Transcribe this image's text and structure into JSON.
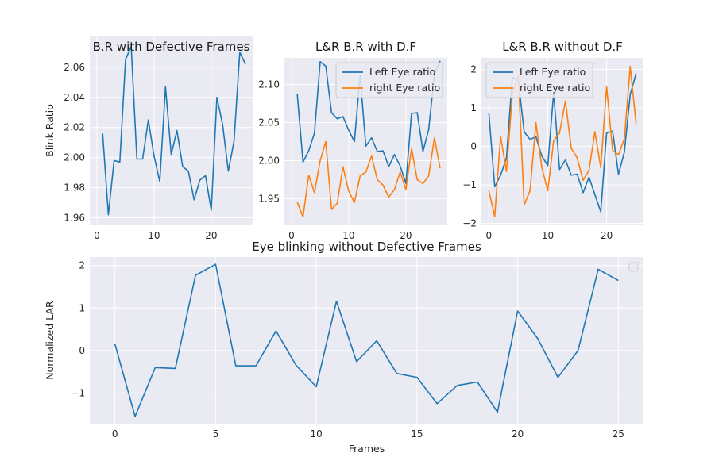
{
  "chart_data": [
    {
      "type": "line",
      "title": "B.R with Defective Frames",
      "xlabel": "",
      "ylabel": "Blink Ratio",
      "xlim": [
        -1.25,
        27.25
      ],
      "ylim": [
        1.955,
        2.081
      ],
      "xticks": [
        0,
        10,
        20
      ],
      "yticks": [
        1.96,
        1.98,
        2.0,
        2.02,
        2.04,
        2.06
      ],
      "ytick_labels": [
        "1.96",
        "1.98",
        "2.00",
        "2.02",
        "2.04",
        "2.06"
      ],
      "series": [
        {
          "color": "#1f77b4",
          "x": [
            1,
            2,
            3,
            4,
            5,
            6,
            7,
            8,
            9,
            10,
            11,
            12,
            13,
            14,
            15,
            16,
            17,
            18,
            19,
            20,
            21,
            22,
            23,
            24,
            25,
            26
          ],
          "y": [
            2.016,
            1.962,
            1.998,
            1.997,
            2.065,
            2.074,
            1.999,
            1.999,
            2.025,
            2.001,
            1.984,
            2.047,
            2.002,
            2.018,
            1.994,
            1.991,
            1.972,
            1.985,
            1.988,
            1.965,
            2.04,
            2.022,
            1.991,
            2.011,
            2.07,
            2.062
          ]
        }
      ]
    },
    {
      "type": "line",
      "title": "L&R B.R with D.F",
      "xlabel": "",
      "ylabel": "",
      "xlim": [
        -1.25,
        27.25
      ],
      "ylim": [
        1.915,
        2.135
      ],
      "xticks": [
        0,
        10,
        20
      ],
      "yticks": [
        1.95,
        2.0,
        2.05,
        2.1
      ],
      "ytick_labels": [
        "1.95",
        "2.00",
        "2.05",
        "2.10"
      ],
      "legend": "upper right",
      "series": [
        {
          "name": "Left Eye ratio",
          "color": "#1f77b4",
          "x": [
            1,
            2,
            3,
            4,
            5,
            6,
            7,
            8,
            9,
            10,
            11,
            12,
            13,
            14,
            15,
            16,
            17,
            18,
            19,
            20,
            21,
            22,
            23,
            24,
            25,
            26
          ],
          "y": [
            2.087,
            1.998,
            2.013,
            2.036,
            2.13,
            2.124,
            2.063,
            2.055,
            2.058,
            2.04,
            2.025,
            2.112,
            2.019,
            2.03,
            2.012,
            2.013,
            1.992,
            2.008,
            1.993,
            1.97,
            2.062,
            2.063,
            2.012,
            2.041,
            2.113,
            2.131
          ]
        },
        {
          "name": "right Eye ratio",
          "color": "#ff7f0e",
          "x": [
            1,
            2,
            3,
            4,
            5,
            6,
            7,
            8,
            9,
            10,
            11,
            12,
            13,
            14,
            15,
            16,
            17,
            18,
            19,
            20,
            21,
            22,
            23,
            24,
            25,
            26
          ],
          "y": [
            1.945,
            1.926,
            1.981,
            1.958,
            2.0,
            2.025,
            1.936,
            1.944,
            1.992,
            1.96,
            1.945,
            1.98,
            1.985,
            2.006,
            1.975,
            1.968,
            1.952,
            1.962,
            1.985,
            1.962,
            2.016,
            1.975,
            1.97,
            1.98,
            2.03,
            1.99
          ]
        }
      ]
    },
    {
      "type": "line",
      "title": "L&R B.R without D.F",
      "xlabel": "",
      "ylabel": "",
      "xlim": [
        -1.25,
        26.25
      ],
      "ylim": [
        -2.05,
        2.3
      ],
      "xticks": [
        0,
        10,
        20
      ],
      "yticks": [
        -2,
        -1,
        0,
        1,
        2
      ],
      "ytick_labels": [
        "−2",
        "−1",
        "0",
        "1",
        "2"
      ],
      "legend": "upper left",
      "series": [
        {
          "name": "Left Eye ratio",
          "color": "#1f77b4",
          "x": [
            0,
            1,
            2,
            3,
            4,
            5,
            6,
            7,
            8,
            9,
            10,
            11,
            12,
            13,
            14,
            15,
            16,
            17,
            18,
            19,
            20,
            21,
            22,
            23,
            24,
            25
          ],
          "y": [
            0.88,
            -1.05,
            -0.75,
            -0.3,
            1.8,
            1.72,
            0.38,
            0.18,
            0.25,
            -0.25,
            -0.5,
            1.4,
            -0.6,
            -0.35,
            -0.75,
            -0.72,
            -1.2,
            -0.8,
            -1.25,
            -1.7,
            0.35,
            0.4,
            -0.72,
            -0.15,
            1.35,
            1.9
          ]
        },
        {
          "name": "right Eye ratio",
          "color": "#ff7f0e",
          "x": [
            0,
            1,
            2,
            3,
            4,
            5,
            6,
            7,
            8,
            9,
            10,
            11,
            12,
            13,
            14,
            15,
            16,
            17,
            18,
            19,
            20,
            21,
            22,
            23,
            24,
            25
          ],
          "y": [
            -1.15,
            -1.82,
            0.26,
            -0.65,
            1.35,
            1.85,
            -1.52,
            -1.15,
            0.62,
            -0.55,
            -1.15,
            0.15,
            0.35,
            1.18,
            -0.05,
            -0.3,
            -0.88,
            -0.62,
            0.38,
            -0.55,
            1.55,
            -0.1,
            -0.22,
            0.2,
            2.08,
            0.58
          ]
        }
      ]
    },
    {
      "type": "line",
      "title": "Eye blinking without Defective Frames",
      "xlabel": "Frames",
      "ylabel": "Normalized LAR",
      "xlim": [
        -1.25,
        26.25
      ],
      "ylim": [
        -1.72,
        2.2
      ],
      "xticks": [
        0,
        5,
        10,
        15,
        20,
        25
      ],
      "yticks": [
        -1,
        0,
        1,
        2
      ],
      "ytick_labels": [
        "−1",
        "0",
        "1",
        "2"
      ],
      "legend": "upper right (empty)",
      "series": [
        {
          "color": "#1f77b4",
          "x": [
            0,
            1,
            2,
            3,
            4,
            5,
            6,
            7,
            8,
            9,
            10,
            11,
            12,
            13,
            14,
            15,
            16,
            17,
            18,
            19,
            20,
            21,
            22,
            23,
            24,
            25
          ],
          "y": [
            0.15,
            -1.55,
            -0.4,
            -0.42,
            1.77,
            2.03,
            -0.36,
            -0.36,
            0.46,
            -0.35,
            -0.85,
            1.16,
            -0.26,
            0.23,
            -0.54,
            -0.63,
            -1.25,
            -0.82,
            -0.74,
            -1.45,
            0.93,
            0.28,
            -0.63,
            0.0,
            1.91,
            1.65
          ]
        }
      ]
    }
  ]
}
